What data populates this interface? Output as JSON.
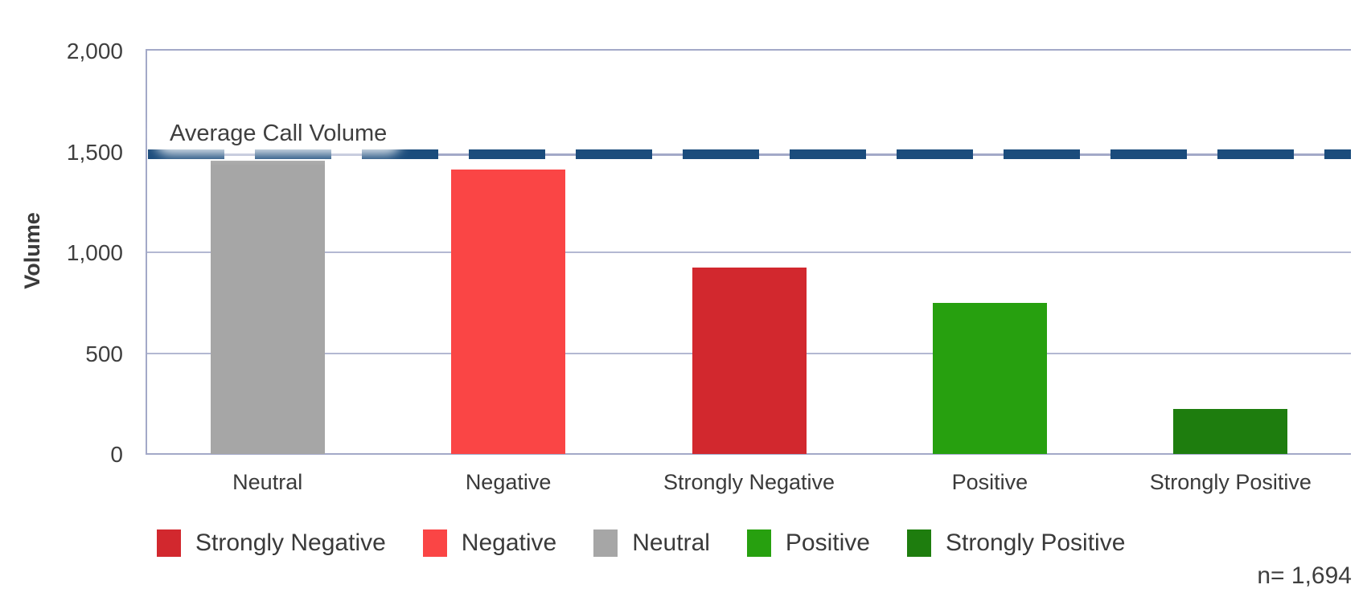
{
  "colors": {
    "axis": "#a3a9c8",
    "gridline": "#b3b8d2",
    "reference_line": "#1b4c7c",
    "text": "#3d3d3d"
  },
  "chart_data": {
    "type": "bar",
    "title": "",
    "xlabel": "",
    "ylabel": "Volume",
    "ylim": [
      0,
      2000
    ],
    "grid": true,
    "grid_values": [
      500,
      1000
    ],
    "y_ticks": [
      {
        "value": 0,
        "label": "0"
      },
      {
        "value": 500,
        "label": "500"
      },
      {
        "value": 1000,
        "label": "1,000"
      },
      {
        "value": 1500,
        "label": "1,500"
      },
      {
        "value": 2000,
        "label": "2,000"
      }
    ],
    "categories": [
      "Neutral",
      "Negative",
      "Strongly Negative",
      "Positive",
      "Strongly Positive"
    ],
    "values": [
      1455,
      1410,
      925,
      750,
      225
    ],
    "bar_colors": [
      "#a6a6a6",
      "#fa4545",
      "#d2282e",
      "#27a00f",
      "#1e7d0e"
    ],
    "reference_line": {
      "label": "Average Call Volume",
      "value": 1500,
      "color": "#1b4c7c",
      "style": "dashed"
    },
    "legend_position": "bottom",
    "legend": [
      {
        "label": "Strongly Negative",
        "color": "#d2282e"
      },
      {
        "label": "Negative",
        "color": "#fa4545"
      },
      {
        "label": "Neutral",
        "color": "#a6a6a6"
      },
      {
        "label": "Positive",
        "color": "#27a00f"
      },
      {
        "label": "Strongly Positive",
        "color": "#1e7d0e"
      }
    ],
    "annotation": "n= 1,694"
  }
}
